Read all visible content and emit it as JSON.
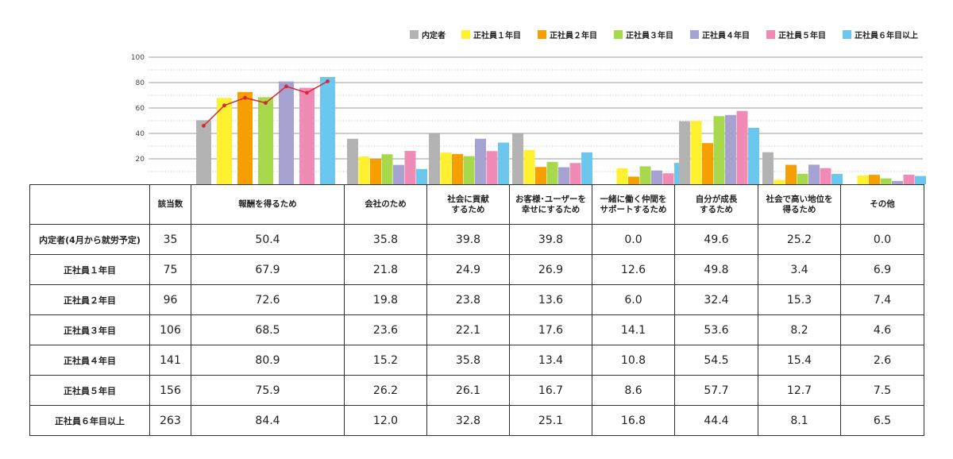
{
  "chart_data": {
    "type": "bar",
    "y_ticks": [
      "20",
      "40",
      "60",
      "80",
      "100"
    ],
    "ylim": [
      0,
      100
    ],
    "grid": true,
    "legend_position": "top-right",
    "series": [
      {
        "name": "内定者",
        "color": "#b3b3b3"
      },
      {
        "name": "正社員１年目",
        "color": "#fff130"
      },
      {
        "name": "正社員２年目",
        "color": "#f5a000"
      },
      {
        "name": "正社員３年目",
        "color": "#a8d84c"
      },
      {
        "name": "正社員４年目",
        "color": "#a6a2d1"
      },
      {
        "name": "正社員５年目",
        "color": "#f08bb5"
      },
      {
        "name": "正社員６年目以上",
        "color": "#6cc7ef"
      }
    ],
    "categories": [
      "報酬を得るため",
      "会社のため",
      "社会に貢献するため",
      "お客様･ユーザーを幸せにするため",
      "一緒に働く仲間をサポートするため",
      "自分が成長するため",
      "社会で高い地位を得るため",
      "その他"
    ],
    "values": [
      [
        50.4,
        67.9,
        72.6,
        68.5,
        80.9,
        75.9,
        84.4
      ],
      [
        35.8,
        21.8,
        19.8,
        23.6,
        15.2,
        26.2,
        12.0
      ],
      [
        39.8,
        24.9,
        23.8,
        22.1,
        35.8,
        26.1,
        32.8
      ],
      [
        39.8,
        26.9,
        13.6,
        17.6,
        13.4,
        16.7,
        25.1
      ],
      [
        0.0,
        12.6,
        6.0,
        14.1,
        10.8,
        8.6,
        16.8
      ],
      [
        49.6,
        49.8,
        32.4,
        53.6,
        54.5,
        57.7,
        44.4
      ],
      [
        25.2,
        3.4,
        15.3,
        8.2,
        15.4,
        12.7,
        8.1
      ],
      [
        0.0,
        6.9,
        7.4,
        4.6,
        2.6,
        7.5,
        6.5
      ]
    ],
    "trend_line": {
      "category": "報酬を得るため",
      "color": "#d7282f",
      "values": [
        46,
        62,
        68,
        64,
        77,
        72,
        81
      ]
    }
  },
  "table": {
    "header": {
      "count_label": "該当数",
      "categories": [
        [
          "報酬を得るため"
        ],
        [
          "会社のため"
        ],
        [
          "社会に貢献",
          "するため"
        ],
        [
          "お客様･ユーザーを",
          "幸せにするため"
        ],
        [
          "一緒に働く仲間を",
          "サポートするため"
        ],
        [
          "自分が成長",
          "するため"
        ],
        [
          "社会で高い地位を",
          "得るため"
        ],
        [
          "その他"
        ]
      ]
    },
    "rows": [
      {
        "label": "内定者(4月から就労予定)",
        "count": "35",
        "cells": [
          "50.4",
          "35.8",
          "39.8",
          "39.8",
          "0.0",
          "49.6",
          "25.2",
          "0.0"
        ]
      },
      {
        "label": "正社員１年目",
        "count": "75",
        "cells": [
          "67.9",
          "21.8",
          "24.9",
          "26.9",
          "12.6",
          "49.8",
          "3.4",
          "6.9"
        ]
      },
      {
        "label": "正社員２年目",
        "count": "96",
        "cells": [
          "72.6",
          "19.8",
          "23.8",
          "13.6",
          "6.0",
          "32.4",
          "15.3",
          "7.4"
        ]
      },
      {
        "label": "正社員３年目",
        "count": "106",
        "cells": [
          "68.5",
          "23.6",
          "22.1",
          "17.6",
          "14.1",
          "53.6",
          "8.2",
          "4.6"
        ]
      },
      {
        "label": "正社員４年目",
        "count": "141",
        "cells": [
          "80.9",
          "15.2",
          "35.8",
          "13.4",
          "10.8",
          "54.5",
          "15.4",
          "2.6"
        ]
      },
      {
        "label": "正社員５年目",
        "count": "156",
        "cells": [
          "75.9",
          "26.2",
          "26.1",
          "16.7",
          "8.6",
          "57.7",
          "12.7",
          "7.5"
        ]
      },
      {
        "label": "正社員６年目以上",
        "count": "263",
        "cells": [
          "84.4",
          "12.0",
          "32.8",
          "25.1",
          "16.8",
          "44.4",
          "8.1",
          "6.5"
        ]
      }
    ]
  }
}
